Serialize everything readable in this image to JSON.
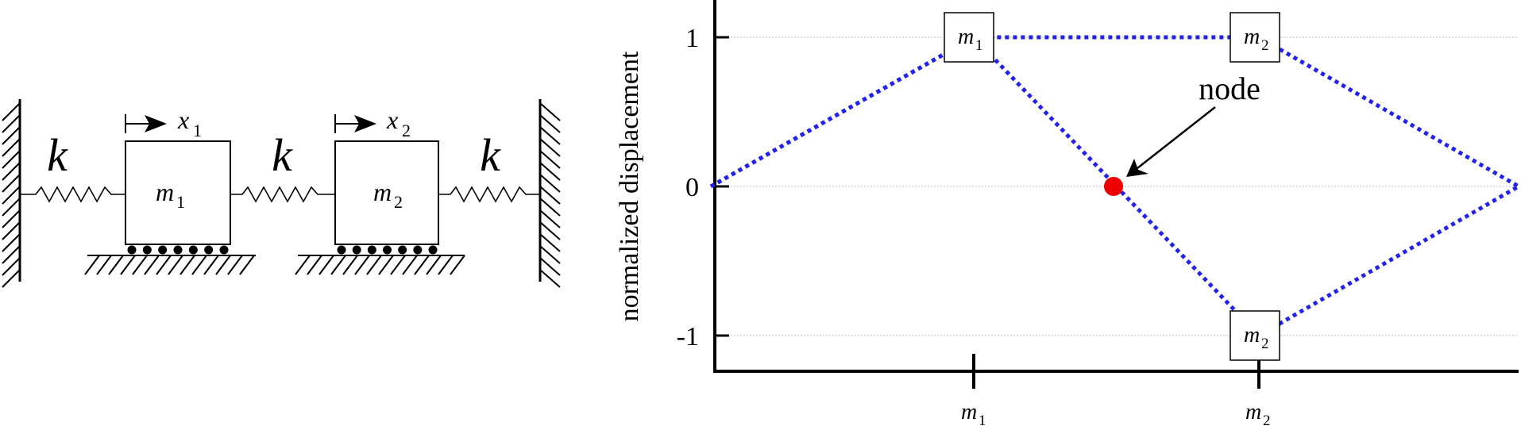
{
  "schematic": {
    "spring_label": "k",
    "mass1_label": "m",
    "mass1_sub": "1",
    "mass2_label": "m",
    "mass2_sub": "2",
    "x1_label": "x",
    "x1_sub": "1",
    "x2_label": "x",
    "x2_sub": "2"
  },
  "plot": {
    "ylabel": "normalized displacement",
    "yticks": [
      "1",
      "0",
      "-1"
    ],
    "xticks": [
      {
        "label": "m",
        "sub": "1"
      },
      {
        "label": "m",
        "sub": "2"
      }
    ],
    "node_label": "node",
    "colors": {
      "mode_line": "#2222ee",
      "node_dot": "#ee0000",
      "grid": "#bbbbbb"
    }
  },
  "chart_data": {
    "type": "line",
    "ylabel": "normalized displacement",
    "ylim": [
      -1.2,
      1.2
    ],
    "categories": [
      "wall",
      "m1",
      "m2",
      "wall"
    ],
    "series": [
      {
        "values": [
          0,
          1,
          1,
          0
        ]
      },
      {
        "values": [
          0,
          1,
          -1,
          0
        ]
      }
    ],
    "annotations": [
      {
        "text": "node",
        "x": 1.5,
        "y": 0
      }
    ],
    "grid": true
  }
}
